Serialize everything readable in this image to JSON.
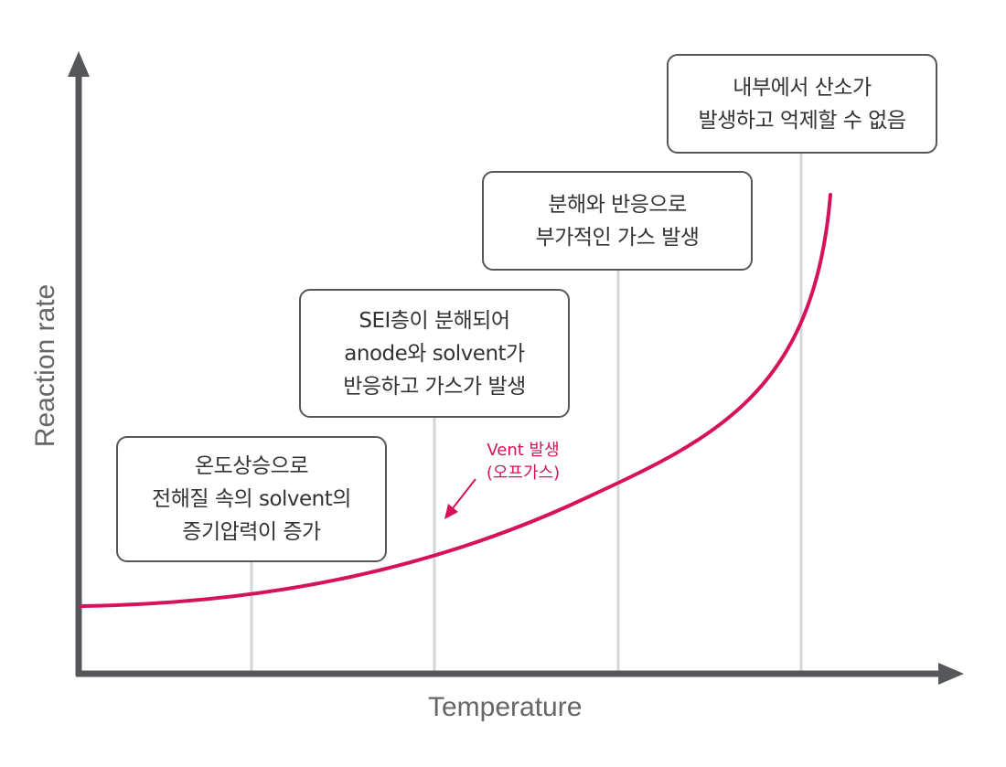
{
  "axes": {
    "x_label": "Temperature",
    "y_label": "Reaction rate"
  },
  "stages": [
    {
      "lines": [
        "온도상승으로",
        "전해질 속의 solvent의",
        "증기압력이 증가"
      ]
    },
    {
      "lines": [
        "SEI층이 분해되어",
        "anode와 solvent가",
        "반응하고 가스가 발생"
      ]
    },
    {
      "lines": [
        "분해와 반응으로",
        "부가적인 가스 발생"
      ]
    },
    {
      "lines": [
        "내부에서 산소가",
        "발생하고 억제할 수 없음"
      ]
    }
  ],
  "vent_note": {
    "line1": "Vent 발생",
    "line2": "(오프가스)"
  },
  "colors": {
    "axis": "#55575a",
    "curve": "#d6125a",
    "guide": "#d4d6d9",
    "box_border": "#55575a",
    "text": "#333333"
  }
}
